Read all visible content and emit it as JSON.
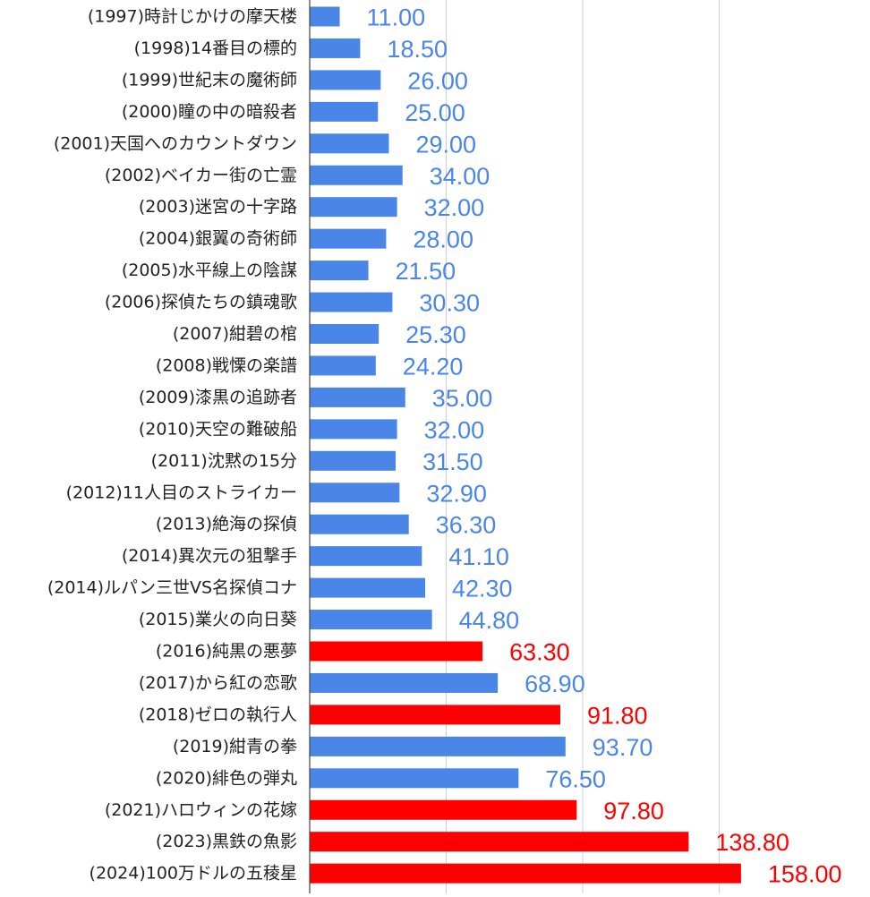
{
  "chart_data": {
    "type": "bar",
    "orientation": "horizontal",
    "title": "",
    "xlabel": "",
    "ylabel": "",
    "xlim": [
      0,
      160
    ],
    "gridlines": [
      0,
      50,
      100,
      150
    ],
    "grid": true,
    "legend": "none",
    "colors": {
      "normal": "#4a86e8",
      "highlight": "#ff0000"
    },
    "categories": [
      "(1997)時計じかけの摩天楼",
      "(1998)14番目の標的",
      "(1999)世紀末の魔術師",
      "(2000)瞳の中の暗殺者",
      "(2001)天国へのカウントダウン",
      "(2002)ベイカー街の亡霊",
      "(2003)迷宮の十字路",
      "(2004)銀翼の奇術師",
      "(2005)水平線上の陰謀",
      "(2006)探偵たちの鎮魂歌",
      "(2007)紺碧の棺",
      "(2008)戦慄の楽譜",
      "(2009)漆黒の追跡者",
      "(2010)天空の難破船",
      "(2011)沈黙の15分",
      "(2012)11人目のストライカー",
      "(2013)絶海の探偵",
      "(2014)異次元の狙撃手",
      "(2014)ルパン三世VS名探偵コナ",
      "(2015)業火の向日葵",
      "(2016)純黒の悪夢",
      "(2017)から紅の恋歌",
      "(2018)ゼロの執行人",
      "(2019)紺青の拳",
      "(2020)緋色の弾丸",
      "(2021)ハロウィンの花嫁",
      "(2023)黒鉄の魚影",
      "(2024)100万ドルの五稜星"
    ],
    "values": [
      11.0,
      18.5,
      26.0,
      25.0,
      29.0,
      34.0,
      32.0,
      28.0,
      21.5,
      30.3,
      25.3,
      24.2,
      35.0,
      32.0,
      31.5,
      32.9,
      36.3,
      41.1,
      42.3,
      44.8,
      63.3,
      68.9,
      91.8,
      93.7,
      76.5,
      97.8,
      138.8,
      158.0
    ],
    "value_labels": [
      "11.00",
      "18.50",
      "26.00",
      "25.00",
      "29.00",
      "34.00",
      "32.00",
      "28.00",
      "21.50",
      "30.30",
      "25.30",
      "24.20",
      "35.00",
      "32.00",
      "31.50",
      "32.90",
      "36.30",
      "41.10",
      "42.30",
      "44.80",
      "63.30",
      "68.90",
      "91.80",
      "93.70",
      "76.50",
      "97.80",
      "138.80",
      "158.00"
    ],
    "highlight": [
      false,
      false,
      false,
      false,
      false,
      false,
      false,
      false,
      false,
      false,
      false,
      false,
      false,
      false,
      false,
      false,
      false,
      false,
      false,
      false,
      true,
      false,
      true,
      false,
      false,
      true,
      true,
      true
    ]
  }
}
